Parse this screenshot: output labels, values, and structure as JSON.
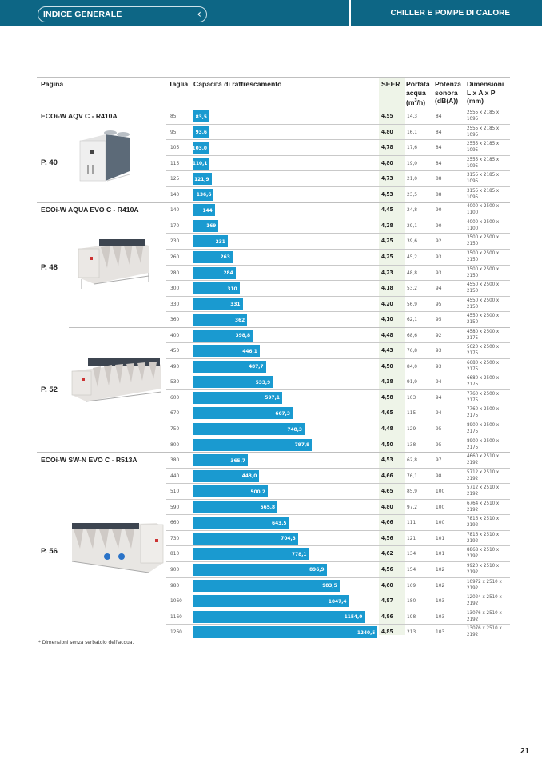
{
  "header": {
    "index_label": "INDICE GENERALE",
    "back_icon": "chevron-left-icon",
    "section_title": "CHILLER E POMPE DI CALORE",
    "brand_color": "#0d6685"
  },
  "table": {
    "columns": {
      "pagina": "Pagina",
      "taglia": "Taglia",
      "capacita": "Capacità di raffrescamento",
      "seer": "SEER",
      "portata": [
        "Portata",
        "acqua",
        "(m",
        "3",
        "/h)"
      ],
      "potenza": [
        "Potenza",
        "sonora",
        "(dB(A))"
      ],
      "dimensioni": [
        "Dimensioni",
        "L x A x P",
        "(mm)"
      ]
    },
    "bar_color": "#1a9ad0",
    "seer_highlight_color": "#eef4e8",
    "capacity_max": 1260,
    "groups": [
      {
        "title": "ECOi-W AQV C - R410A",
        "page": "P. 40",
        "image": "chiller-aqv-c-image",
        "rows": [
          {
            "taglia": "85",
            "capacita": "83,5",
            "value": 83.5,
            "seer": "4,55",
            "portata": "14,3",
            "potenza": "84",
            "dim": "2555 x 2185 x 1095"
          },
          {
            "taglia": "95",
            "capacita": "93,6",
            "value": 93.6,
            "seer": "4,80",
            "portata": "16,1",
            "potenza": "84",
            "dim": "2555 x 2185 x 1095"
          },
          {
            "taglia": "105",
            "capacita": "103,0",
            "value": 103.0,
            "seer": "4,78",
            "portata": "17,6",
            "potenza": "84",
            "dim": "2555 x 2185 x 1095"
          },
          {
            "taglia": "115",
            "capacita": "110,1",
            "value": 110.1,
            "seer": "4,80",
            "portata": "19,0",
            "potenza": "84",
            "dim": "2555 x 2185 x 1095"
          },
          {
            "taglia": "125",
            "capacita": "121,9",
            "value": 121.9,
            "seer": "4,73",
            "portata": "21,0",
            "potenza": "88",
            "dim": "3155 x 2185 x 1095"
          },
          {
            "taglia": "140",
            "capacita": "136,6",
            "value": 136.6,
            "seer": "4,53",
            "portata": "23,5",
            "potenza": "88",
            "dim": "3155 x 2185 x 1095"
          }
        ]
      },
      {
        "title": "ECOi-W AQUA EVO C - R410A",
        "page": "P. 48",
        "image": "chiller-aqua-evo-c-image",
        "rows": [
          {
            "taglia": "140",
            "capacita": "144",
            "value": 144,
            "seer": "4,45",
            "portata": "24,8",
            "potenza": "90",
            "dim": "4000 x 2500 x 1100"
          },
          {
            "taglia": "170",
            "capacita": "169",
            "value": 169,
            "seer": "4,28",
            "portata": "29,1",
            "potenza": "90",
            "dim": "4000 x 2500 x 1100"
          },
          {
            "taglia": "230",
            "capacita": "231",
            "value": 231,
            "seer": "4,25",
            "portata": "39,6",
            "potenza": "92",
            "dim": "3500 x 2500 x 2150"
          },
          {
            "taglia": "260",
            "capacita": "263",
            "value": 263,
            "seer": "4,25",
            "portata": "45,2",
            "potenza": "93",
            "dim": "3500 x 2500 x 2150"
          },
          {
            "taglia": "280",
            "capacita": "284",
            "value": 284,
            "seer": "4,23",
            "portata": "48,8",
            "potenza": "93",
            "dim": "3500 x 2500 x 2150"
          },
          {
            "taglia": "300",
            "capacita": "310",
            "value": 310,
            "seer": "4,18",
            "portata": "53,2",
            "potenza": "94",
            "dim": "4550 x 2500 x 2150"
          },
          {
            "taglia": "330",
            "capacita": "331",
            "value": 331,
            "seer": "4,20",
            "portata": "56,9",
            "potenza": "95",
            "dim": "4550 x 2500 x 2150"
          },
          {
            "taglia": "360",
            "capacita": "362",
            "value": 362,
            "seer": "4,10",
            "portata": "62,1",
            "potenza": "95",
            "dim": "4550 x 2500 x 2150"
          }
        ]
      },
      {
        "title": "",
        "page": "P. 52",
        "image": "chiller-aqua-evo-c-large-image",
        "rows": [
          {
            "taglia": "400",
            "capacita": "398,8",
            "value": 398.8,
            "seer": "4,48",
            "portata": "68,6",
            "potenza": "92",
            "dim": "4580 x 2500 x 2175"
          },
          {
            "taglia": "450",
            "capacita": "446,1",
            "value": 446.1,
            "seer": "4,43",
            "portata": "76,8",
            "potenza": "93",
            "dim": "5620 x 2500 x 2175"
          },
          {
            "taglia": "490",
            "capacita": "487,7",
            "value": 487.7,
            "seer": "4,50",
            "portata": "84,0",
            "potenza": "93",
            "dim": "6680 x 2500 x 2175"
          },
          {
            "taglia": "530",
            "capacita": "533,9",
            "value": 533.9,
            "seer": "4,38",
            "portata": "91,9",
            "potenza": "94",
            "dim": "6680 x 2500 x 2175"
          },
          {
            "taglia": "600",
            "capacita": "597,1",
            "value": 597.1,
            "seer": "4,58",
            "portata": "103",
            "potenza": "94",
            "dim": "7760 x 2500 x 2175"
          },
          {
            "taglia": "670",
            "capacita": "667,3",
            "value": 667.3,
            "seer": "4,65",
            "portata": "115",
            "potenza": "94",
            "dim": "7760 x 2500 x 2175"
          },
          {
            "taglia": "750",
            "capacita": "748,3",
            "value": 748.3,
            "seer": "4,48",
            "portata": "129",
            "potenza": "95",
            "dim": "8900 x 2500 x 2175"
          },
          {
            "taglia": "800",
            "capacita": "797,9",
            "value": 797.9,
            "seer": "4,50",
            "portata": "138",
            "potenza": "95",
            "dim": "8900 x 2500 x 2175"
          }
        ]
      },
      {
        "title": "ECOi-W SW-N EVO C - R513A",
        "page": "P. 56",
        "image": "chiller-sw-n-evo-c-image",
        "rows": [
          {
            "taglia": "380",
            "capacita": "365,7",
            "value": 365.7,
            "seer": "4,53",
            "portata": "62,8",
            "potenza": "97",
            "dim": "4660 x 2510 x 2192"
          },
          {
            "taglia": "440",
            "capacita": "443,0",
            "value": 443.0,
            "seer": "4,66",
            "portata": "76,1",
            "potenza": "98",
            "dim": "5712 x 2510 x 2192"
          },
          {
            "taglia": "510",
            "capacita": "500,2",
            "value": 500.2,
            "seer": "4,65",
            "portata": "85,9",
            "potenza": "100",
            "dim": "5712 x 2510 x 2192"
          },
          {
            "taglia": "590",
            "capacita": "565,8",
            "value": 565.8,
            "seer": "4,80",
            "portata": "97,2",
            "potenza": "100",
            "dim": "6764 x 2510 x 2192"
          },
          {
            "taglia": "660",
            "capacita": "643,5",
            "value": 643.5,
            "seer": "4,66",
            "portata": "111",
            "potenza": "100",
            "dim": "7816 x 2510 x 2192"
          },
          {
            "taglia": "730",
            "capacita": "704,3",
            "value": 704.3,
            "seer": "4,56",
            "portata": "121",
            "potenza": "101",
            "dim": "7816 x 2510 x 2192"
          },
          {
            "taglia": "810",
            "capacita": "778,1",
            "value": 778.1,
            "seer": "4,62",
            "portata": "134",
            "potenza": "101",
            "dim": "8868 x 2510 x 2192"
          },
          {
            "taglia": "900",
            "capacita": "896,9",
            "value": 896.9,
            "seer": "4,56",
            "portata": "154",
            "potenza": "102",
            "dim": "9920 x 2510 x 2192"
          },
          {
            "taglia": "980",
            "capacita": "983,5",
            "value": 983.5,
            "seer": "4,60",
            "portata": "169",
            "potenza": "102",
            "dim": "10972 x 2510 x 2192"
          },
          {
            "taglia": "1060",
            "capacita": "1047,4",
            "value": 1047.4,
            "seer": "4,87",
            "portata": "180",
            "potenza": "103",
            "dim": "12024 x 2510 x 2192"
          },
          {
            "taglia": "1160",
            "capacita": "1154,0",
            "value": 1154.0,
            "seer": "4,86",
            "portata": "198",
            "potenza": "103",
            "dim": "13076 x 2510 x 2192"
          },
          {
            "taglia": "1260",
            "capacita": "1240,5",
            "value": 1240.5,
            "seer": "4,85",
            "portata": "213",
            "potenza": "103",
            "dim": "13076 x 2510 x 2192"
          }
        ]
      }
    ]
  },
  "footnote": "* Dimensioni senza serbatoio dell'acqua.",
  "page_number": "21"
}
